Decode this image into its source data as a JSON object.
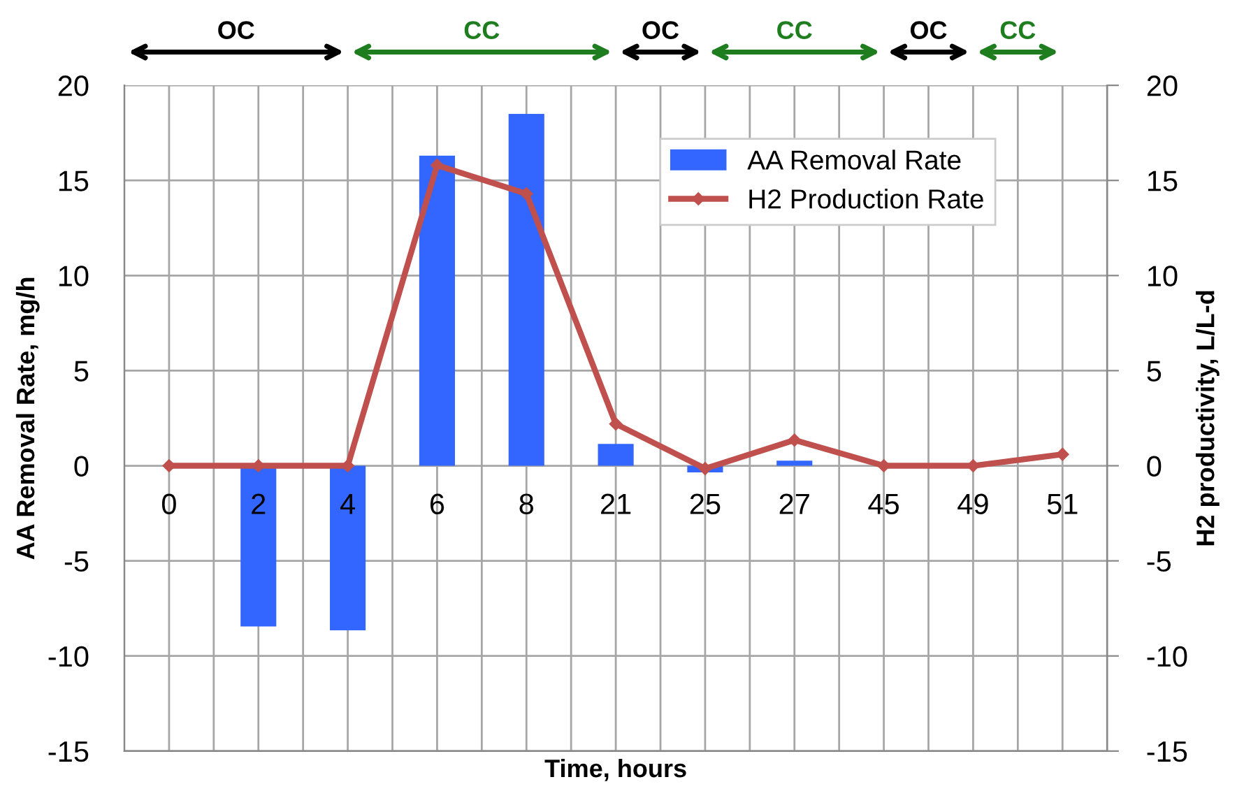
{
  "chart_data": {
    "type": "bar",
    "xlabel": "Time, hours",
    "ylabel": "AA Removal Rate, mg/h",
    "y2label": "H2 productivity, L/L-d",
    "categories": [
      "0",
      "2",
      "4",
      "6",
      "8",
      "21",
      "25",
      "27",
      "45",
      "49",
      "51"
    ],
    "series": [
      {
        "name": "AA Removal Rate",
        "color": "#3366ff",
        "values": [
          0,
          -8.45,
          -8.65,
          16.3,
          18.5,
          1.15,
          -0.35,
          0.27,
          0,
          0,
          0
        ]
      },
      {
        "name": "H2 Production Rate",
        "type": "line",
        "color": "#c0504d",
        "marker": "diamond",
        "values": [
          0,
          0,
          0,
          15.8,
          14.3,
          2.2,
          -0.15,
          1.35,
          0,
          0,
          0.6
        ]
      }
    ],
    "ylim": [
      -15,
      20
    ],
    "yticks": [
      -15,
      -10,
      -5,
      0,
      5,
      10,
      15,
      20
    ],
    "y2lim": [
      -15,
      20
    ],
    "y2ticks": [
      -15,
      -10,
      -5,
      0,
      5,
      10,
      15,
      20
    ],
    "grid": true,
    "legend": "top right",
    "annotations": [
      "OC",
      "CC",
      "OC",
      "CC",
      "OC",
      "CC"
    ]
  }
}
